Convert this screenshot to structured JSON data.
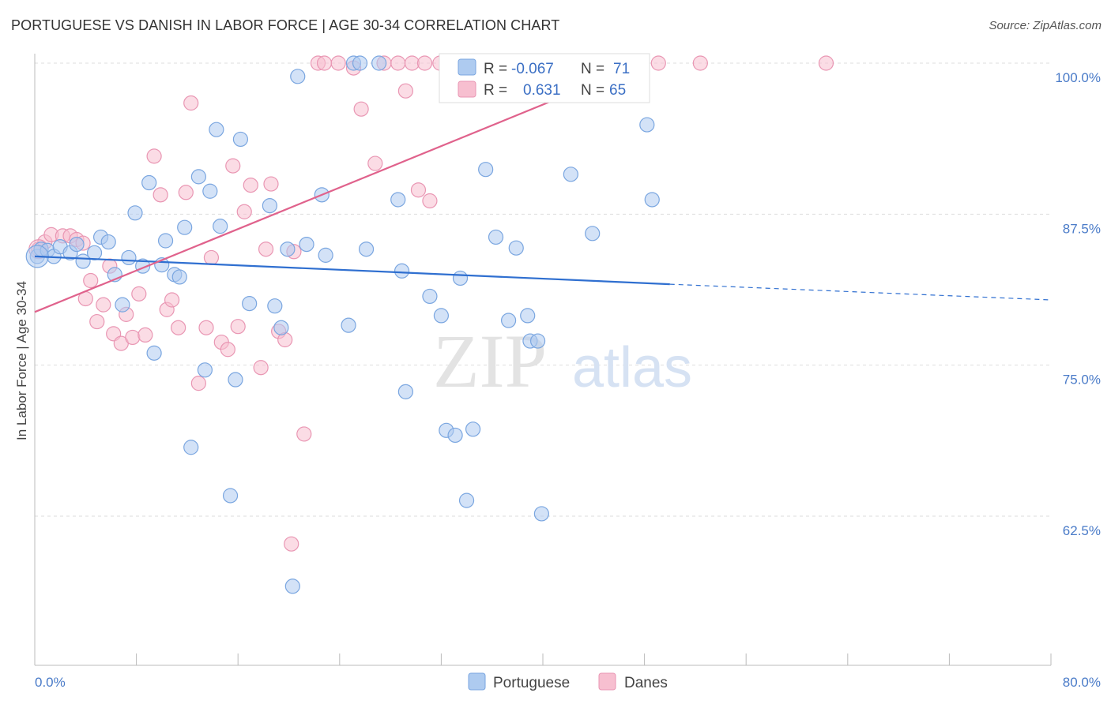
{
  "title": "PORTUGUESE VS DANISH IN LABOR FORCE | AGE 30-34 CORRELATION CHART",
  "source": "Source: ZipAtlas.com",
  "watermark": {
    "zip": "ZIP",
    "atlas": "atlas"
  },
  "colors": {
    "portuguese_fill": "#aecbf0",
    "portuguese_stroke": "#7aa6e0",
    "portuguese_line": "#2f6fd0",
    "danes_fill": "#f7bfd0",
    "danes_stroke": "#e996b3",
    "danes_line": "#e0628c",
    "tick_label": "#4a7bc8",
    "grid": "#dddddd"
  },
  "legend": {
    "rows": [
      {
        "r_label": "R =",
        "r_value": "-0.067",
        "n_label": "N =",
        "n_value": "71"
      },
      {
        "r_label": "R =",
        "r_value": "0.631",
        "n_label": "N =",
        "n_value": "65"
      }
    ]
  },
  "chart_data": {
    "type": "scatter",
    "title": "PORTUGUESE VS DANISH IN LABOR FORCE | AGE 30-34 CORRELATION CHART",
    "xlabel": "",
    "ylabel": "In Labor Force | Age 30-34",
    "xlim": [
      0,
      80
    ],
    "ylim": [
      50,
      102
    ],
    "x_tick_labels": [
      "0.0%",
      "80.0%"
    ],
    "y_ticks": [
      62.5,
      75.0,
      87.5,
      100.0
    ],
    "y_tick_labels": [
      "62.5%",
      "75.0%",
      "87.5%",
      "100.0%"
    ],
    "grid": true,
    "legend_position": "top-center",
    "series": [
      {
        "name": "Portuguese",
        "trend": {
          "x0": 0,
          "y0": 84.0,
          "x1": 50,
          "y1": 81.7,
          "dash_to_x": 80,
          "dash_to_y": 80.4
        },
        "points": [
          [
            0.2,
            84.0
          ],
          [
            0.5,
            84.6
          ],
          [
            1.0,
            84.5
          ],
          [
            1.5,
            84.0
          ],
          [
            2.0,
            84.8
          ],
          [
            2.8,
            84.3
          ],
          [
            3.3,
            85.0
          ],
          [
            3.8,
            83.6
          ],
          [
            4.7,
            84.3
          ],
          [
            5.2,
            85.6
          ],
          [
            5.8,
            85.2
          ],
          [
            6.3,
            82.5
          ],
          [
            6.9,
            80.0
          ],
          [
            7.4,
            83.9
          ],
          [
            7.9,
            87.6
          ],
          [
            8.5,
            83.2
          ],
          [
            9.0,
            90.1
          ],
          [
            9.4,
            76.0
          ],
          [
            10.0,
            83.3
          ],
          [
            10.3,
            85.3
          ],
          [
            11.0,
            82.5
          ],
          [
            11.4,
            82.3
          ],
          [
            11.8,
            86.4
          ],
          [
            12.3,
            68.2
          ],
          [
            12.9,
            90.6
          ],
          [
            13.4,
            74.6
          ],
          [
            13.8,
            89.4
          ],
          [
            14.3,
            94.5
          ],
          [
            14.6,
            86.5
          ],
          [
            15.4,
            64.2
          ],
          [
            15.8,
            73.8
          ],
          [
            16.2,
            93.7
          ],
          [
            16.9,
            80.1
          ],
          [
            18.5,
            88.2
          ],
          [
            18.9,
            79.9
          ],
          [
            19.4,
            78.1
          ],
          [
            19.9,
            84.6
          ],
          [
            20.3,
            56.7
          ],
          [
            20.7,
            98.9
          ],
          [
            21.4,
            85.0
          ],
          [
            22.6,
            89.1
          ],
          [
            22.9,
            84.1
          ],
          [
            24.7,
            78.3
          ],
          [
            25.1,
            100.0
          ],
          [
            25.6,
            100.0
          ],
          [
            26.1,
            84.6
          ],
          [
            27.1,
            100.0
          ],
          [
            28.6,
            88.7
          ],
          [
            28.9,
            82.8
          ],
          [
            29.2,
            72.8
          ],
          [
            31.1,
            80.7
          ],
          [
            32.0,
            79.1
          ],
          [
            32.4,
            69.6
          ],
          [
            33.1,
            69.2
          ],
          [
            33.5,
            82.2
          ],
          [
            34.0,
            63.8
          ],
          [
            34.5,
            69.7
          ],
          [
            35.5,
            91.2
          ],
          [
            36.3,
            85.6
          ],
          [
            37.3,
            78.7
          ],
          [
            37.9,
            84.7
          ],
          [
            38.8,
            79.1
          ],
          [
            39.0,
            77.0
          ],
          [
            39.6,
            77.0
          ],
          [
            39.9,
            62.7
          ],
          [
            42.2,
            90.8
          ],
          [
            43.9,
            85.9
          ],
          [
            48.2,
            94.9
          ],
          [
            48.6,
            88.7
          ],
          [
            47.2,
            100.0
          ],
          [
            42.7,
            100.0
          ]
        ]
      },
      {
        "name": "Danes",
        "trend": {
          "x0": 0,
          "y0": 79.4,
          "x1": 48,
          "y1": 100.0
        },
        "points": [
          [
            0.3,
            84.6
          ],
          [
            0.8,
            85.2
          ],
          [
            1.3,
            85.8
          ],
          [
            2.2,
            85.7
          ],
          [
            2.8,
            85.7
          ],
          [
            3.3,
            85.4
          ],
          [
            3.8,
            85.1
          ],
          [
            4.0,
            80.5
          ],
          [
            4.4,
            82.0
          ],
          [
            4.9,
            78.6
          ],
          [
            5.4,
            80.0
          ],
          [
            5.9,
            83.2
          ],
          [
            6.2,
            77.6
          ],
          [
            6.8,
            76.8
          ],
          [
            7.2,
            79.2
          ],
          [
            7.7,
            77.3
          ],
          [
            8.2,
            80.9
          ],
          [
            8.7,
            77.5
          ],
          [
            9.4,
            92.3
          ],
          [
            9.9,
            89.1
          ],
          [
            10.4,
            79.6
          ],
          [
            10.8,
            80.4
          ],
          [
            11.3,
            78.1
          ],
          [
            11.9,
            89.3
          ],
          [
            12.3,
            96.7
          ],
          [
            12.9,
            73.5
          ],
          [
            13.5,
            78.1
          ],
          [
            13.9,
            83.9
          ],
          [
            14.7,
            76.9
          ],
          [
            15.2,
            76.3
          ],
          [
            15.6,
            91.5
          ],
          [
            16.0,
            78.2
          ],
          [
            16.5,
            87.7
          ],
          [
            17.0,
            89.9
          ],
          [
            17.8,
            74.8
          ],
          [
            18.2,
            84.6
          ],
          [
            18.6,
            90.0
          ],
          [
            19.2,
            77.8
          ],
          [
            19.7,
            77.1
          ],
          [
            20.4,
            84.4
          ],
          [
            20.2,
            60.2
          ],
          [
            21.2,
            69.3
          ],
          [
            22.3,
            100.0
          ],
          [
            22.8,
            100.0
          ],
          [
            23.9,
            100.0
          ],
          [
            25.1,
            99.6
          ],
          [
            25.7,
            96.2
          ],
          [
            26.8,
            91.7
          ],
          [
            27.5,
            100.0
          ],
          [
            28.6,
            100.0
          ],
          [
            29.2,
            97.7
          ],
          [
            29.7,
            100.0
          ],
          [
            30.2,
            89.5
          ],
          [
            30.7,
            100.0
          ],
          [
            31.1,
            88.6
          ],
          [
            31.9,
            100.0
          ],
          [
            34.3,
            100.0
          ],
          [
            35.2,
            100.0
          ],
          [
            40.8,
            100.0
          ],
          [
            43.9,
            100.0
          ],
          [
            46.5,
            100.0
          ],
          [
            47.5,
            100.0
          ],
          [
            49.1,
            100.0
          ],
          [
            52.4,
            100.0
          ],
          [
            62.3,
            100.0
          ]
        ]
      }
    ]
  },
  "bottom_legend": {
    "portuguese": "Portuguese",
    "danes": "Danes"
  }
}
